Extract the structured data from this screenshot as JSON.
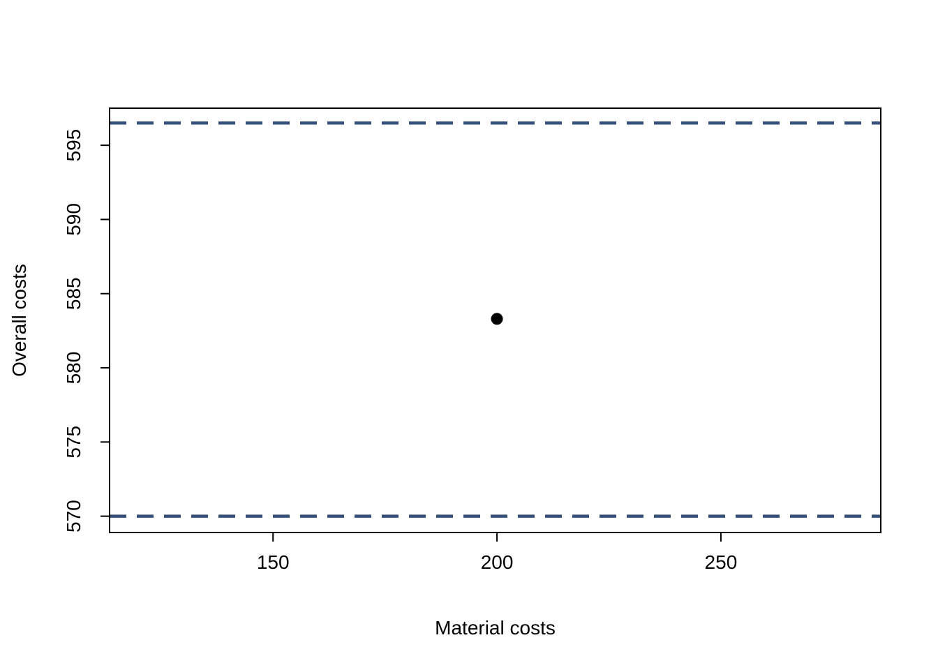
{
  "chart_data": {
    "type": "scatter",
    "title": "",
    "xlabel": "Material costs",
    "ylabel": "Overall costs",
    "points": [
      {
        "x": 200,
        "y": 583.3
      }
    ],
    "hlines": [
      {
        "y": 570.0,
        "style": "dashed",
        "color": "#35507A"
      },
      {
        "y": 596.5,
        "style": "dashed",
        "color": "#35507A"
      }
    ],
    "xticks": [
      150,
      200,
      250
    ],
    "yticks": [
      570,
      575,
      580,
      585,
      590,
      595
    ],
    "xlim": [
      113.5,
      285.7
    ],
    "ylim": [
      568.9,
      597.5
    ],
    "grid": false,
    "legend": "none",
    "point_color": "#000000",
    "box_color": "#000000"
  }
}
